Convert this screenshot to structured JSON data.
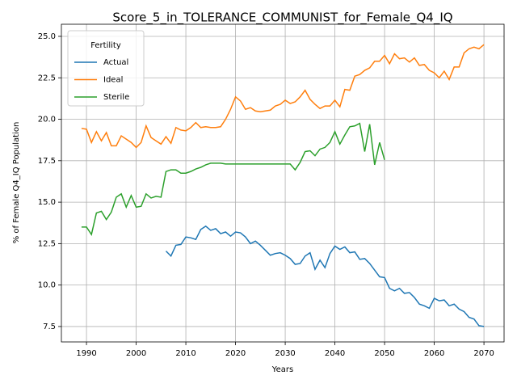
{
  "chart_data": {
    "type": "line",
    "title": "Score_5_in_TOLERANCE_COMMUNIST_for_Female_Q4_IQ",
    "xlabel": "Years",
    "ylabel": "% of Female Q4_IQ Population",
    "legend_title": "Fertility",
    "legend": "upper left",
    "grid": true,
    "x": [
      1989,
      1990,
      1991,
      1992,
      1993,
      1994,
      1995,
      1996,
      1997,
      1998,
      1999,
      2000,
      2001,
      2002,
      2003,
      2004,
      2005,
      2006,
      2007,
      2008,
      2009,
      2010,
      2011,
      2012,
      2013,
      2014,
      2015,
      2016,
      2017,
      2018,
      2019,
      2020,
      2021,
      2022,
      2023,
      2024,
      2025,
      2026,
      2027,
      2028,
      2029,
      2030,
      2031,
      2032,
      2033,
      2034,
      2035,
      2036,
      2037,
      2038,
      2039,
      2040,
      2041,
      2042,
      2043,
      2044,
      2045,
      2046,
      2047,
      2048,
      2049,
      2050,
      2051,
      2052,
      2053,
      2054,
      2055,
      2056,
      2057,
      2058,
      2059,
      2060,
      2061,
      2062,
      2063,
      2064,
      2065,
      2066,
      2067,
      2068,
      2069,
      2070
    ],
    "series": [
      {
        "name": "Actual",
        "color": "#1f77b4",
        "values": [
          null,
          null,
          null,
          null,
          null,
          null,
          null,
          null,
          null,
          null,
          null,
          null,
          null,
          null,
          null,
          null,
          null,
          12.05,
          11.75,
          12.4,
          12.45,
          12.9,
          12.85,
          12.75,
          13.35,
          13.55,
          13.3,
          13.4,
          13.1,
          13.2,
          12.95,
          13.2,
          13.15,
          12.9,
          12.5,
          12.65,
          12.4,
          12.1,
          11.8,
          11.9,
          11.95,
          11.8,
          11.6,
          11.25,
          11.3,
          11.75,
          11.95,
          10.95,
          11.5,
          11.05,
          11.9,
          12.35,
          12.15,
          12.3,
          11.95,
          12.0,
          11.55,
          11.6,
          11.3,
          10.9,
          10.5,
          10.45,
          9.8,
          9.65,
          9.8,
          9.5,
          9.55,
          9.25,
          8.85,
          8.75,
          8.6,
          9.2,
          9.05,
          9.1,
          8.75,
          8.85,
          8.55,
          8.4,
          8.05,
          7.95,
          7.55,
          7.5
        ]
      },
      {
        "name": "Ideal",
        "color": "#ff7f0e",
        "values": [
          19.45,
          19.4,
          18.6,
          19.25,
          18.7,
          19.2,
          18.4,
          18.4,
          19.0,
          18.8,
          18.6,
          18.3,
          18.6,
          19.6,
          18.9,
          18.7,
          18.5,
          18.95,
          18.55,
          19.5,
          19.35,
          19.3,
          19.5,
          19.8,
          19.5,
          19.55,
          19.5,
          19.5,
          19.55,
          20.0,
          20.6,
          21.35,
          21.1,
          20.6,
          20.7,
          20.5,
          20.45,
          20.5,
          20.55,
          20.8,
          20.9,
          21.15,
          20.95,
          21.05,
          21.35,
          21.75,
          21.2,
          20.9,
          20.65,
          20.8,
          20.8,
          21.15,
          20.75,
          21.8,
          21.75,
          22.6,
          22.7,
          22.95,
          23.1,
          23.5,
          23.5,
          23.85,
          23.35,
          23.95,
          23.65,
          23.7,
          23.45,
          23.7,
          23.25,
          23.3,
          22.95,
          22.8,
          22.5,
          22.9,
          22.4,
          23.15,
          23.15,
          24.0,
          24.25,
          24.35,
          24.25,
          24.5
        ]
      },
      {
        "name": "Sterile",
        "color": "#2ca02c",
        "values": [
          13.5,
          13.5,
          13.05,
          14.35,
          14.45,
          13.95,
          14.4,
          15.3,
          15.5,
          14.7,
          15.4,
          14.7,
          14.75,
          15.5,
          15.25,
          15.35,
          15.3,
          16.85,
          16.95,
          16.95,
          16.75,
          16.75,
          16.85,
          17.0,
          17.1,
          17.25,
          17.35,
          17.35,
          17.35,
          17.3,
          17.3,
          17.3,
          17.3,
          17.3,
          17.3,
          17.3,
          17.3,
          17.3,
          17.3,
          17.3,
          17.3,
          17.3,
          17.3,
          16.95,
          17.4,
          18.05,
          18.1,
          17.8,
          18.2,
          18.3,
          18.6,
          19.25,
          18.5,
          19.05,
          19.55,
          19.6,
          19.75,
          18.05,
          19.7,
          17.25,
          18.6,
          17.55,
          null,
          null,
          null,
          null,
          null,
          null,
          null,
          null,
          null,
          null,
          null,
          null,
          null,
          null,
          null,
          null,
          null,
          null,
          null,
          null
        ]
      }
    ],
    "xlim": [
      1984.95,
      2074.05
    ],
    "xticks": [
      1990,
      2000,
      2010,
      2020,
      2030,
      2040,
      2050,
      2060,
      2070
    ],
    "ylim": [
      6.57,
      25.73
    ],
    "yticks": [
      7.5,
      {
        "value": 10,
        "label": "10.0"
      },
      12.5,
      {
        "value": 15,
        "label": "15.0"
      },
      17.5,
      {
        "value": 20,
        "label": "20.0"
      },
      22.5,
      {
        "value": 25,
        "label": "25.0"
      }
    ]
  }
}
